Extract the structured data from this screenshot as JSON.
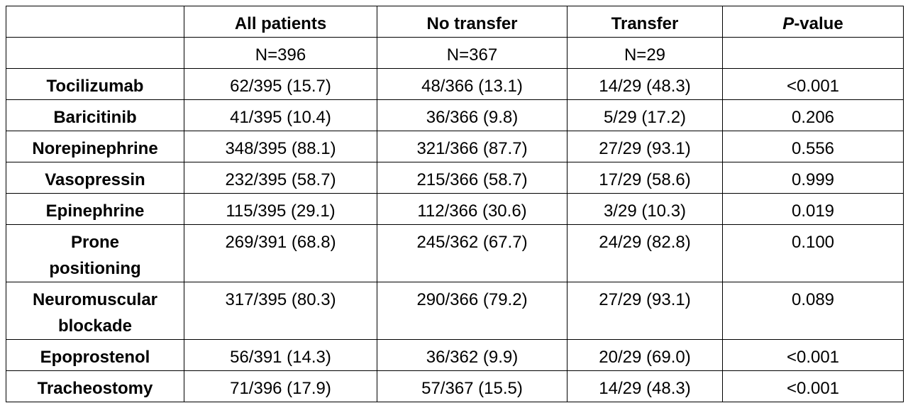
{
  "table": {
    "header": [
      "",
      "All patients",
      "No transfer",
      "Transfer",
      {
        "italic": "P",
        "text": "-value"
      }
    ],
    "counts": [
      "N=396",
      "N=367",
      "N=29"
    ],
    "rows": [
      [
        "Tocilizumab",
        "62/395 (15.7)",
        "48/366 (13.1)",
        "14/29 (48.3)",
        "<0.001"
      ],
      [
        "Baricitinib",
        "41/395 (10.4)",
        "36/366 (9.8)",
        "5/29 (17.2)",
        "0.206"
      ],
      [
        "Norepinephrine",
        "348/395 (88.1)",
        "321/366 (87.7)",
        "27/29 (93.1)",
        "0.556"
      ],
      [
        "Vasopressin",
        "232/395 (58.7)",
        "215/366 (58.7)",
        "17/29 (58.6)",
        "0.999"
      ],
      [
        "Epinephrine",
        "115/395 (29.1)",
        "112/366 (30.6)",
        "3/29 (10.3)",
        "0.019"
      ],
      [
        "Prone positioning",
        "269/391 (68.8)",
        "245/362 (67.7)",
        "24/29 (82.8)",
        "0.100"
      ],
      [
        "Neuromuscular blockade",
        "317/395 (80.3)",
        "290/366 (79.2)",
        "27/29 (93.1)",
        "0.089"
      ],
      [
        "Epoprostenol",
        "56/391 (14.3)",
        "36/362 (9.9)",
        "20/29 (69.0)",
        "<0.001"
      ],
      [
        "Tracheostomy",
        "71/396 (17.9)",
        "57/367 (15.5)",
        "14/29 (48.3)",
        "<0.001"
      ]
    ]
  }
}
